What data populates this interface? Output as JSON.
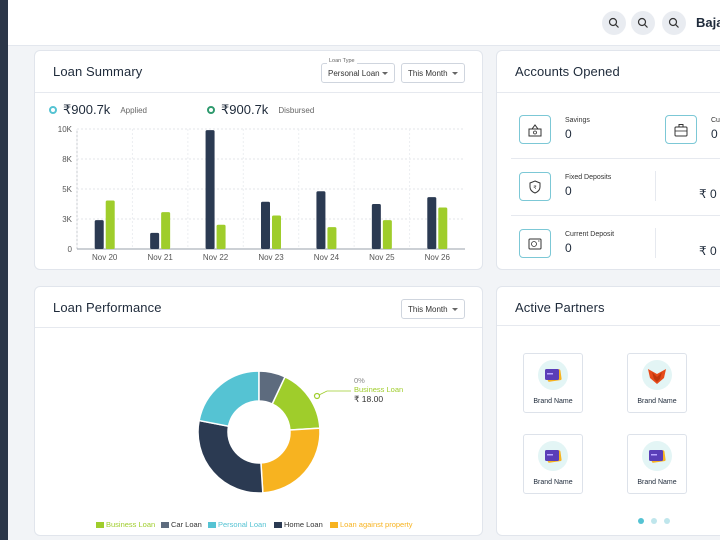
{
  "header": {
    "user_name": "Baja"
  },
  "loan_summary": {
    "title": "Loan Summary",
    "loan_type_caption": "Loan Type",
    "loan_type_value": "Personal Loan",
    "period_value": "This Month",
    "applied_amount": "₹900.7k",
    "applied_label": "Applied",
    "disbursed_amount": "₹900.7k",
    "disbursed_label": "Disbursed"
  },
  "chart_data": {
    "type": "bar",
    "categories": [
      "Nov 20",
      "Nov 21",
      "Nov 22",
      "Nov 23",
      "Nov 24",
      "Nov 25",
      "Nov 26"
    ],
    "series": [
      {
        "values": [
          2500,
          1400,
          10300,
          4100,
          5000,
          3900,
          4500
        ],
        "color": "#2b3a52"
      },
      {
        "values": [
          4200,
          3200,
          2100,
          2900,
          1900,
          2500,
          3600
        ],
        "color": "#9fcd2b"
      }
    ],
    "yticks": [
      "0",
      "3K",
      "5K",
      "8K",
      "10K"
    ],
    "ytick_values": [
      0,
      2600,
      5200,
      7800,
      10400
    ],
    "ylim": [
      0,
      10400
    ]
  },
  "accounts": {
    "title": "Accounts Opened",
    "items": [
      {
        "label": "Savings",
        "value": "0"
      },
      {
        "label": "Fixed Deposits",
        "value": "0"
      },
      {
        "label": "Current Deposit",
        "value": "0"
      }
    ],
    "right_labels": [
      "Cu",
      "",
      ""
    ],
    "right_values": [
      "0",
      "₹ 0",
      "₹ 0"
    ]
  },
  "loan_performance": {
    "title": "Loan Performance",
    "period_value": "This Month",
    "callout_percent": "0%",
    "callout_name": "Business Loan",
    "callout_amount": "₹ 18.00",
    "pie": [
      {
        "name": "Business Loan",
        "value": 17,
        "color": "#9fcd2b"
      },
      {
        "name": "Loan against property",
        "value": 25,
        "color": "#f7b320"
      },
      {
        "name": "Home Loan",
        "value": 29,
        "color": "#2b3a52"
      },
      {
        "name": "Personal Loan",
        "value": 22,
        "color": "#55c3d3"
      },
      {
        "name": "Car Loan",
        "value": 7,
        "color": "#5d6b7e"
      }
    ],
    "legend": [
      {
        "name": "Business Loan",
        "color": "#9fcd2b"
      },
      {
        "name": "Car Loan",
        "color": "#5d6b7e"
      },
      {
        "name": "Personal Loan",
        "color": "#55c3d3"
      },
      {
        "name": "Home Loan",
        "color": "#2b3a52"
      },
      {
        "name": "Loan against property",
        "color": "#f7b320"
      }
    ]
  },
  "partners": {
    "title": "Active Partners",
    "brands": [
      {
        "name": "Brand Name",
        "logo": "purple-card-logo"
      },
      {
        "name": "Brand Name",
        "logo": "red-fox-logo"
      },
      {
        "name": "Brand Name",
        "logo": "purple-card-logo"
      },
      {
        "name": "Brand Name",
        "logo": "purple-card-logo"
      }
    ]
  }
}
